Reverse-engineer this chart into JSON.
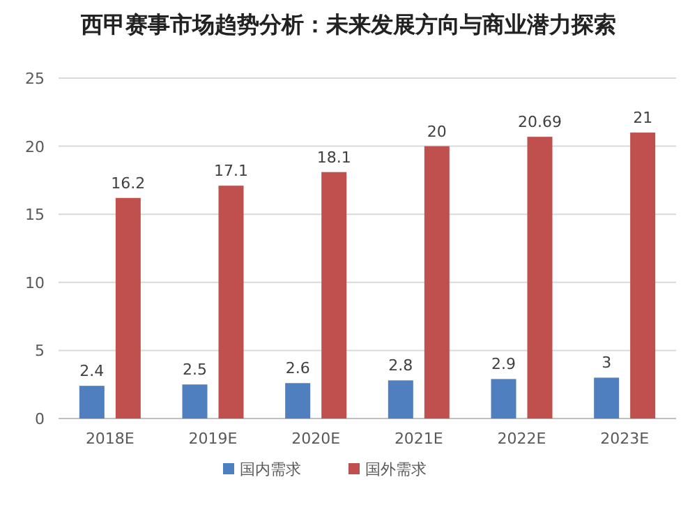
{
  "chart_data": {
    "type": "bar",
    "title": "西甲赛事市场趋势分析：未来发展方向与商业潜力探索",
    "categories": [
      "2018E",
      "2019E",
      "2020E",
      "2021E",
      "2022E",
      "2023E"
    ],
    "series": [
      {
        "name": "国内需求",
        "color": "#4f7fbf",
        "values": [
          2.4,
          2.5,
          2.6,
          2.8,
          2.9,
          3
        ]
      },
      {
        "name": "国外需求",
        "color": "#c0504d",
        "values": [
          16.2,
          17.1,
          18.1,
          20,
          20.69,
          21
        ]
      }
    ],
    "ylim": [
      0,
      25
    ],
    "yticks": [
      0,
      5,
      10,
      15,
      20,
      25
    ],
    "grid": "y",
    "legend": "bottom",
    "data_labels": true
  }
}
